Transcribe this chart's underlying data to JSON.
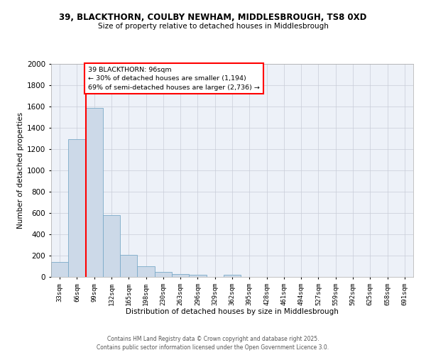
{
  "title_line1": "39, BLACKTHORN, COULBY NEWHAM, MIDDLESBROUGH, TS8 0XD",
  "title_line2": "Size of property relative to detached houses in Middlesbrough",
  "xlabel": "Distribution of detached houses by size in Middlesbrough",
  "ylabel": "Number of detached properties",
  "bar_color": "#ccd9e8",
  "bar_edge_color": "#7aaac8",
  "background_color": "#edf1f8",
  "grid_color": "#c8ccd8",
  "bins": [
    "33sqm",
    "66sqm",
    "99sqm",
    "132sqm",
    "165sqm",
    "198sqm",
    "230sqm",
    "263sqm",
    "296sqm",
    "329sqm",
    "362sqm",
    "395sqm",
    "428sqm",
    "461sqm",
    "494sqm",
    "527sqm",
    "559sqm",
    "592sqm",
    "625sqm",
    "658sqm",
    "691sqm"
  ],
  "values": [
    140,
    1295,
    1590,
    580,
    210,
    100,
    45,
    25,
    20,
    0,
    20,
    0,
    0,
    0,
    0,
    0,
    0,
    0,
    0,
    0,
    0
  ],
  "red_line_bin_index": 2,
  "annotation_text": "39 BLACKTHORN: 96sqm\n← 30% of detached houses are smaller (1,194)\n69% of semi-detached houses are larger (2,736) →",
  "annotation_box_color": "white",
  "annotation_box_edge": "red",
  "ylim": [
    0,
    2000
  ],
  "yticks": [
    0,
    200,
    400,
    600,
    800,
    1000,
    1200,
    1400,
    1600,
    1800,
    2000
  ],
  "footnote1": "Contains HM Land Registry data © Crown copyright and database right 2025.",
  "footnote2": "Contains public sector information licensed under the Open Government Licence 3.0."
}
